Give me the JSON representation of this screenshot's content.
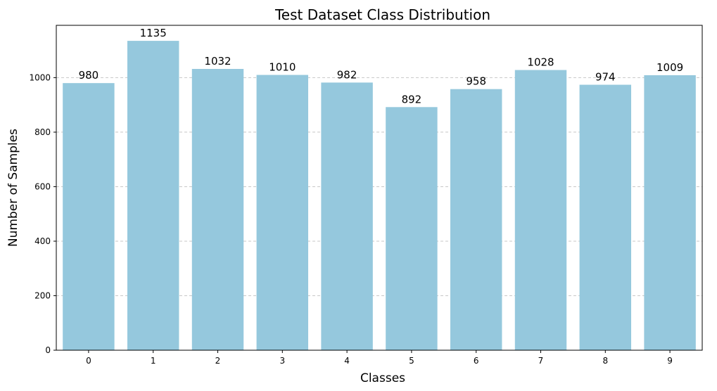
{
  "chart_data": {
    "type": "bar",
    "title": "Test Dataset Class Distribution",
    "xlabel": "Classes",
    "ylabel": "Number of Samples",
    "categories": [
      "0",
      "1",
      "2",
      "3",
      "4",
      "5",
      "6",
      "7",
      "8",
      "9"
    ],
    "values": [
      980,
      1135,
      1032,
      1010,
      982,
      892,
      958,
      1028,
      974,
      1009
    ],
    "data_labels": [
      "980",
      "1135",
      "1032",
      "1010",
      "982",
      "892",
      "958",
      "1028",
      "974",
      "1009"
    ],
    "ylim": [
      0,
      1192
    ],
    "yticks": [
      0,
      200,
      400,
      600,
      800,
      1000
    ],
    "ytick_labels": [
      "0",
      "200",
      "400",
      "600",
      "800",
      "1000"
    ],
    "grid": "horizontal dashed",
    "bar_color": "#95c8dd",
    "grid_color": "#c8c8c8"
  }
}
